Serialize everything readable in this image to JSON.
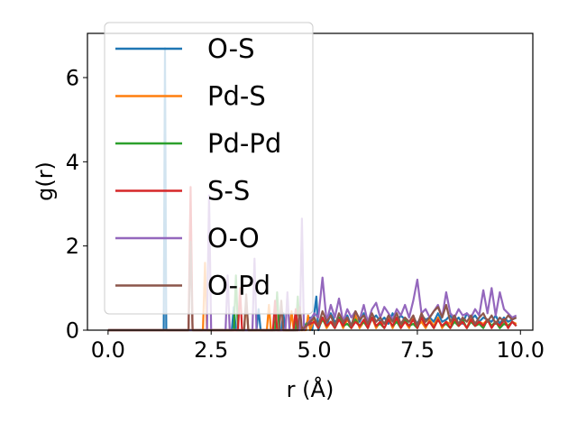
{
  "chart_data": {
    "type": "line",
    "title": "",
    "xlabel": "r (Å)",
    "ylabel": "g(r)",
    "xlim": [
      -0.5,
      10.3
    ],
    "ylim": [
      0,
      7.05
    ],
    "xticks": [
      "0.0",
      "2.5",
      "5.0",
      "7.5",
      "10.0"
    ],
    "yticks": [
      "0",
      "2",
      "4",
      "6"
    ],
    "grid": false,
    "legend_position": "top-left",
    "series": [
      {
        "name": "O-S",
        "color": "#1f77b4",
        "x": [
          0,
          1.35,
          1.38,
          1.41,
          1.44,
          1.47,
          1.5,
          3.0,
          3.05,
          3.1,
          3.6,
          3.65,
          3.7,
          4.2,
          4.25,
          4.3,
          4.6,
          4.65,
          4.7,
          4.9,
          4.95,
          5.05,
          5.1,
          5.2,
          5.3,
          5.4,
          5.5,
          5.6,
          5.7,
          5.8,
          5.9,
          6.0,
          6.1,
          6.2,
          6.3,
          6.4,
          6.5,
          6.6,
          6.7,
          6.8,
          6.9,
          7.0,
          7.1,
          7.2,
          7.3,
          7.4,
          7.5,
          7.6,
          7.7,
          7.8,
          7.9,
          8.0,
          8.1,
          8.2,
          8.3,
          8.4,
          8.5,
          8.6,
          8.7,
          8.8,
          8.9,
          9.0,
          9.1,
          9.2,
          9.3,
          9.4,
          9.5,
          9.6,
          9.7,
          9.8,
          9.9
        ],
        "y": [
          0,
          0,
          6.7,
          0,
          0,
          0,
          0,
          0,
          0.55,
          0,
          0,
          0.5,
          0,
          0,
          0.4,
          0,
          0,
          0.35,
          0,
          0.3,
          0,
          0.8,
          0,
          0.3,
          0.1,
          0.4,
          0.2,
          0.25,
          0.15,
          0.35,
          0.1,
          0.3,
          0.2,
          0.4,
          0.1,
          0.25,
          0.35,
          0.2,
          0.3,
          0.15,
          0.4,
          0.2,
          0.35,
          0.25,
          0.2,
          0.3,
          0.15,
          0.35,
          0.25,
          0.3,
          0.2,
          0.4,
          0.2,
          0.25,
          0.35,
          0.2,
          0.3,
          0.15,
          0.4,
          0.25,
          0.35,
          0.2,
          0.3,
          0.25,
          0.2,
          0.35,
          0.15,
          0.3,
          0.2,
          0.25,
          0.3
        ]
      },
      {
        "name": "Pd-S",
        "color": "#ff7f0e",
        "x": [
          0,
          2.25,
          2.3,
          2.35,
          2.4,
          2.45,
          3.3,
          3.35,
          3.4,
          3.85,
          3.9,
          3.95,
          4.4,
          4.45,
          4.5,
          4.8,
          4.85,
          4.9,
          5.0,
          5.1,
          5.2,
          5.3,
          5.4,
          5.5,
          5.6,
          5.7,
          5.8,
          5.9,
          6.0,
          6.1,
          6.2,
          6.3,
          6.4,
          6.5,
          6.6,
          6.7,
          6.8,
          6.9,
          7.0,
          7.1,
          7.2,
          7.3,
          7.4,
          7.5,
          7.6,
          7.7,
          7.8,
          7.9,
          8.0,
          8.1,
          8.2,
          8.3,
          8.4,
          8.5,
          8.6,
          8.7,
          8.8,
          8.9,
          9.0,
          9.1,
          9.2,
          9.3,
          9.4,
          9.5,
          9.6,
          9.7,
          9.8,
          9.9
        ],
        "y": [
          0,
          0,
          0,
          1.6,
          0,
          0,
          0,
          0.7,
          0,
          0,
          0.6,
          0,
          0,
          0.45,
          0,
          0,
          0.35,
          0,
          0.25,
          0.1,
          0.3,
          0.05,
          0.2,
          0.1,
          0.3,
          0.05,
          0.25,
          0.1,
          0.35,
          0.05,
          0.2,
          0.1,
          0.3,
          0.05,
          0.2,
          0.15,
          0.3,
          0.05,
          0.25,
          0.1,
          0.2,
          0.05,
          0.3,
          0.1,
          0.2,
          0.05,
          0.25,
          0.1,
          0.3,
          0.05,
          0.2,
          0.15,
          0.25,
          0.1,
          0.2,
          0.05,
          0.3,
          0.1,
          0.2,
          0.15,
          0.25,
          0.1,
          0.2,
          0.05,
          0.25,
          0.1,
          0.2,
          0.15
        ]
      },
      {
        "name": "Pd-Pd",
        "color": "#2ca02c",
        "x": [
          0,
          3.05,
          3.1,
          3.15,
          3.2,
          4.05,
          4.1,
          4.15,
          4.55,
          4.6,
          4.65,
          5.0,
          5.1,
          5.2,
          5.3,
          5.4,
          5.5,
          5.6,
          5.7,
          5.8,
          5.9,
          6.0,
          6.1,
          6.2,
          6.3,
          6.4,
          6.5,
          6.6,
          6.7,
          6.8,
          6.9,
          7.0,
          7.1,
          7.2,
          7.3,
          7.4,
          7.5,
          7.6,
          7.7,
          7.8,
          7.9,
          8.0,
          8.1,
          8.2,
          8.3,
          8.4,
          8.5,
          8.6,
          8.7,
          8.8,
          8.9,
          9.0,
          9.1,
          9.2,
          9.3,
          9.4,
          9.5,
          9.6,
          9.7,
          9.8,
          9.9
        ],
        "y": [
          0,
          0,
          1.3,
          0,
          0,
          0,
          0.9,
          0,
          0,
          0.8,
          0,
          0.3,
          0.05,
          0.25,
          0.1,
          0.2,
          0.05,
          0.3,
          0.1,
          0.15,
          0.05,
          0.25,
          0.1,
          0.2,
          0.05,
          0.3,
          0.1,
          0.15,
          0.05,
          0.25,
          0.1,
          0.2,
          0.05,
          0.25,
          0.1,
          0.15,
          0.05,
          0.3,
          0.1,
          0.2,
          0.05,
          0.25,
          0.1,
          0.15,
          0.05,
          0.2,
          0.1,
          0.25,
          0.05,
          0.2,
          0.1,
          0.15,
          0.05,
          0.25,
          0.1,
          0.2,
          0.05,
          0.15,
          0.1,
          0.2,
          0.1
        ]
      },
      {
        "name": "S-S",
        "color": "#d62728",
        "x": [
          0,
          1.95,
          2.0,
          2.05,
          2.1,
          3.15,
          3.2,
          3.25,
          4.0,
          4.05,
          4.1,
          4.5,
          4.55,
          4.6,
          5.0,
          5.1,
          5.2,
          5.3,
          5.4,
          5.5,
          5.6,
          5.7,
          5.8,
          5.9,
          6.0,
          6.1,
          6.2,
          6.3,
          6.4,
          6.5,
          6.6,
          6.7,
          6.8,
          6.9,
          7.0,
          7.1,
          7.2,
          7.3,
          7.4,
          7.5,
          7.6,
          7.7,
          7.8,
          7.9,
          8.0,
          8.1,
          8.2,
          8.3,
          8.4,
          8.5,
          8.6,
          8.7,
          8.8,
          8.9,
          9.0,
          9.1,
          9.2,
          9.3,
          9.4,
          9.5,
          9.6,
          9.7,
          9.8,
          9.9
        ],
        "y": [
          0,
          0,
          3.4,
          0,
          0,
          0,
          1.0,
          0,
          0,
          0.7,
          0,
          0,
          0.5,
          0,
          0.2,
          0.05,
          0.3,
          0.1,
          0.2,
          0.05,
          0.25,
          0.1,
          0.3,
          0.05,
          0.2,
          0.1,
          0.25,
          0.05,
          0.3,
          0.1,
          0.2,
          0.05,
          0.25,
          0.1,
          0.3,
          0.05,
          0.2,
          0.1,
          0.25,
          0.05,
          0.3,
          0.1,
          0.2,
          0.05,
          0.25,
          0.1,
          0.2,
          0.05,
          0.3,
          0.1,
          0.2,
          0.05,
          0.25,
          0.1,
          0.2,
          0.1,
          0.25,
          0.05,
          0.2,
          0.1,
          0.25,
          0.05,
          0.2,
          0.1
        ]
      },
      {
        "name": "O-O",
        "color": "#9467bd",
        "x": [
          0,
          2.4,
          2.45,
          2.5,
          2.85,
          2.9,
          2.95,
          3.5,
          3.55,
          3.6,
          4.3,
          4.35,
          4.4,
          4.65,
          4.7,
          4.75,
          5.0,
          5.1,
          5.2,
          5.3,
          5.4,
          5.5,
          5.6,
          5.7,
          5.8,
          5.9,
          6.0,
          6.1,
          6.2,
          6.3,
          6.4,
          6.5,
          6.6,
          6.7,
          6.8,
          6.9,
          7.0,
          7.1,
          7.2,
          7.3,
          7.4,
          7.5,
          7.6,
          7.7,
          7.8,
          7.9,
          8.0,
          8.1,
          8.2,
          8.3,
          8.4,
          8.5,
          8.6,
          8.7,
          8.8,
          8.9,
          9.0,
          9.1,
          9.2,
          9.3,
          9.4,
          9.5,
          9.6,
          9.7,
          9.8,
          9.9
        ],
        "y": [
          0,
          0,
          3.2,
          0,
          0,
          1.3,
          0,
          0,
          1.7,
          0,
          0,
          0.9,
          0,
          0,
          2.65,
          0,
          0.4,
          0.3,
          1.25,
          0.2,
          0.6,
          0.3,
          0.75,
          0.2,
          0.5,
          0.3,
          0.45,
          0.25,
          0.6,
          0.2,
          0.5,
          0.65,
          0.3,
          0.55,
          0.4,
          0.25,
          0.5,
          0.35,
          0.6,
          0.3,
          0.7,
          1.2,
          0.4,
          0.5,
          0.3,
          0.45,
          0.6,
          0.3,
          0.9,
          0.4,
          0.3,
          0.5,
          0.35,
          0.4,
          0.3,
          0.5,
          0.35,
          0.95,
          0.4,
          1.0,
          0.35,
          0.9,
          0.5,
          0.4,
          0.3,
          0.35
        ]
      },
      {
        "name": "O-Pd",
        "color": "#8c564b",
        "x": [
          0,
          1.95,
          2.0,
          2.05,
          2.1,
          3.3,
          3.35,
          3.4,
          4.15,
          4.2,
          4.25,
          4.6,
          4.65,
          4.7,
          5.0,
          5.1,
          5.2,
          5.3,
          5.4,
          5.5,
          5.6,
          5.7,
          5.8,
          5.9,
          6.0,
          6.1,
          6.2,
          6.3,
          6.4,
          6.5,
          6.6,
          6.7,
          6.8,
          6.9,
          7.0,
          7.1,
          7.2,
          7.3,
          7.4,
          7.5,
          7.6,
          7.7,
          7.8,
          7.9,
          8.0,
          8.1,
          8.2,
          8.3,
          8.4,
          8.5,
          8.6,
          8.7,
          8.8,
          8.9,
          9.0,
          9.1,
          9.2,
          9.3,
          9.4,
          9.5,
          9.6,
          9.7,
          9.8,
          9.9
        ],
        "y": [
          0,
          0,
          2.1,
          0,
          0,
          0,
          0.85,
          0,
          0,
          0.7,
          0,
          0,
          0.55,
          0,
          0.3,
          0.1,
          0.45,
          0.2,
          0.35,
          0.1,
          0.4,
          0.2,
          0.3,
          0.1,
          0.45,
          0.25,
          0.35,
          0.15,
          0.4,
          0.2,
          0.3,
          0.15,
          0.35,
          0.2,
          0.4,
          0.15,
          0.3,
          0.2,
          0.35,
          0.1,
          0.4,
          0.2,
          0.3,
          0.45,
          0.55,
          0.3,
          0.6,
          0.2,
          0.35,
          0.15,
          0.3,
          0.2,
          0.35,
          0.15,
          0.3,
          0.4,
          0.2,
          0.35,
          0.15,
          0.3,
          0.2,
          0.35,
          0.25,
          0.3
        ]
      }
    ]
  }
}
